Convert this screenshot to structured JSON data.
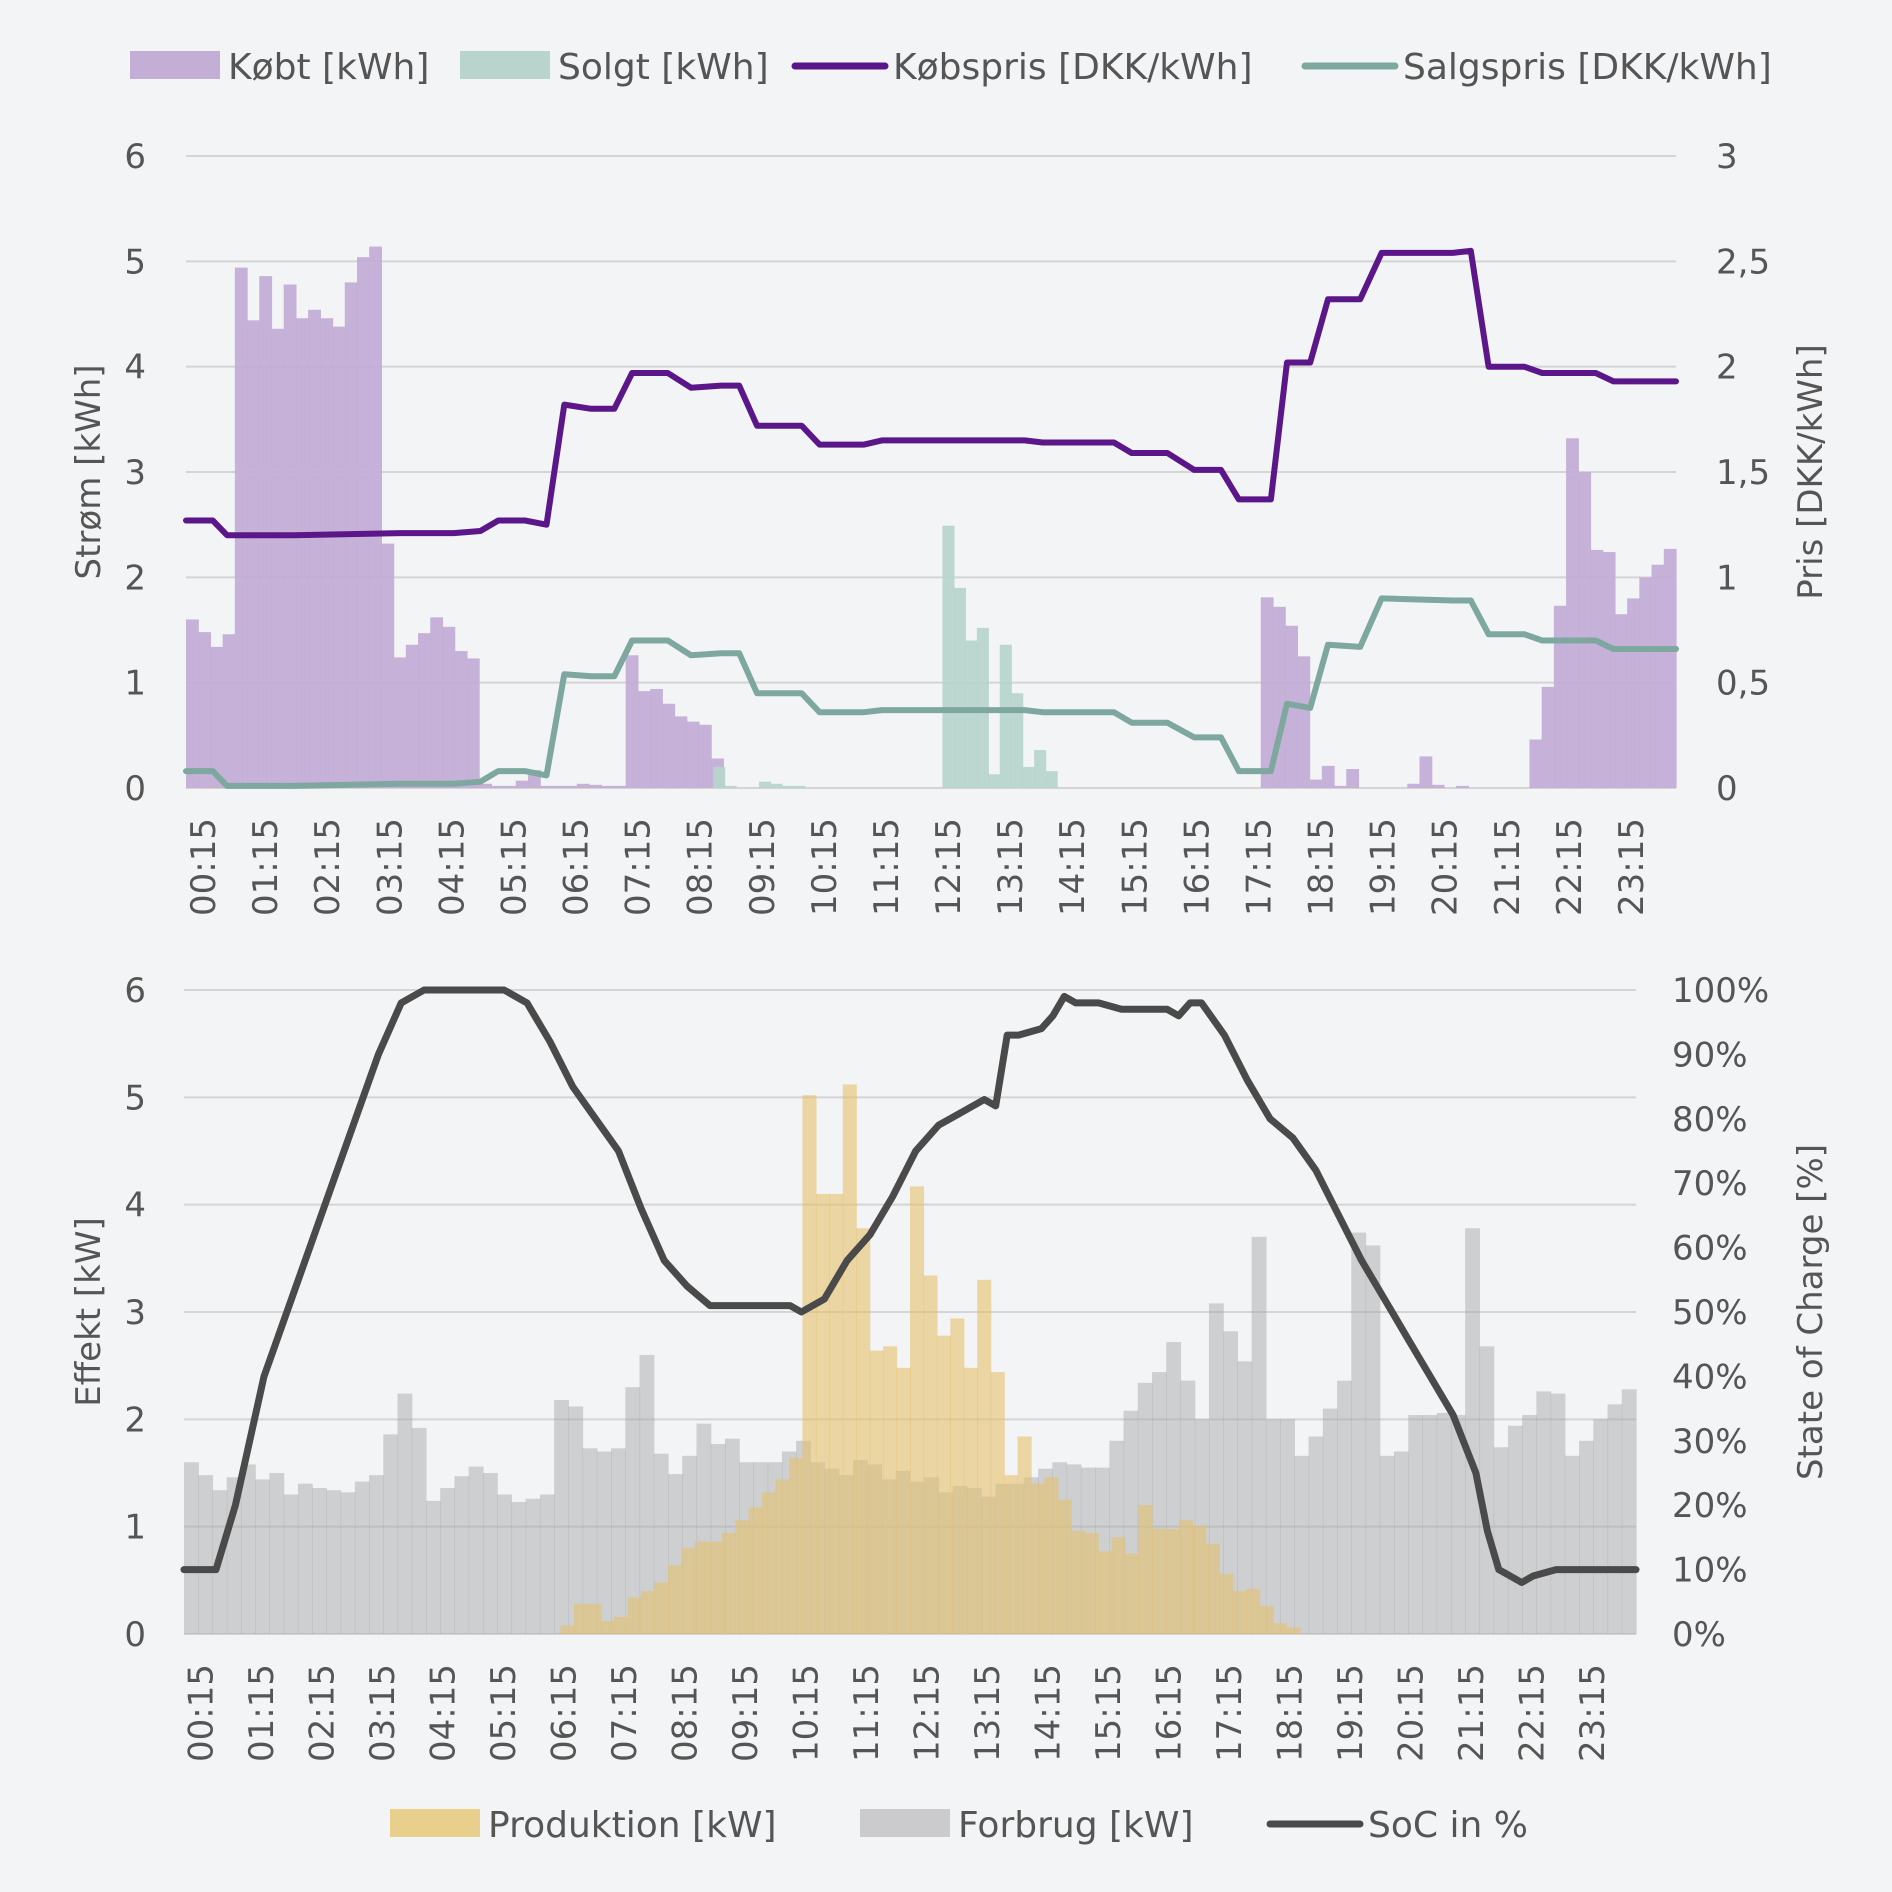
{
  "chart_data": [
    {
      "type": "bar+line",
      "title": "",
      "legend": [
        {
          "label": "Købt [kWh]",
          "kind": "bar",
          "color": "#c3aed6"
        },
        {
          "label": "Solgt [kWh]",
          "kind": "bar",
          "color": "#b8d4cd"
        },
        {
          "label": "Købspris [DKK/kWh]",
          "kind": "line",
          "color": "#5b1789"
        },
        {
          "label": "Salgspris [DKK/kWh]",
          "kind": "line",
          "color": "#7ea89f"
        }
      ],
      "ylabel": "Strøm [kWh]",
      "ylabel2": "Pris [DKK/kWh]",
      "ylim": [
        0,
        6
      ],
      "ylim2": [
        0,
        3
      ],
      "yticks": [
        "0",
        "1",
        "2",
        "3",
        "4",
        "5",
        "6"
      ],
      "yticks2": [
        "0",
        "0,5",
        "1",
        "1,5",
        "2",
        "2,5",
        "3"
      ],
      "xtick_labels": [
        "00:15",
        "01:15",
        "02:15",
        "03:15",
        "04:15",
        "05:15",
        "06:15",
        "07:15",
        "08:15",
        "09:15",
        "10:15",
        "11:15",
        "12:15",
        "13:15",
        "14:15",
        "15:15",
        "16:15",
        "17:15",
        "18:15",
        "19:15",
        "20:15",
        "21:15",
        "22:15",
        "23:15"
      ],
      "bought_kwh": [
        1.6,
        1.48,
        1.34,
        1.46,
        4.94,
        4.44,
        4.86,
        4.36,
        4.78,
        4.46,
        4.54,
        4.46,
        4.38,
        4.8,
        5.04,
        5.14,
        2.32,
        1.24,
        1.36,
        1.47,
        1.62,
        1.53,
        1.3,
        1.23,
        0.04,
        0.02,
        0.02,
        0.07,
        0.17,
        0.02,
        0.02,
        0.02,
        0.04,
        0.03,
        0.02,
        0.02,
        1.26,
        0.92,
        0.94,
        0.8,
        0.68,
        0.63,
        0.6,
        0.28,
        0,
        0,
        0,
        0,
        0,
        0,
        0,
        0,
        0,
        0,
        0,
        0,
        0,
        0,
        0,
        0,
        0,
        0,
        0,
        0,
        0,
        0,
        0,
        0,
        0,
        0,
        0,
        0,
        0,
        0,
        0,
        0,
        0,
        0,
        0,
        0,
        0,
        0,
        0,
        0,
        0,
        0,
        0,
        0,
        1.81,
        1.72,
        1.54,
        1.25,
        0.08,
        0.21,
        0.02,
        0.18,
        0,
        0,
        0,
        0,
        0.04,
        0.3,
        0.03,
        0,
        0.02,
        0,
        0,
        0,
        0,
        0,
        0.46,
        0.96,
        1.73,
        3.32,
        3.0,
        2.26,
        2.24,
        1.65,
        1.8,
        2.0,
        2.12,
        2.27
      ],
      "sold_kwh": [
        0,
        0,
        0,
        0,
        0,
        0,
        0,
        0,
        0,
        0,
        0,
        0,
        0,
        0,
        0,
        0,
        0,
        0,
        0,
        0,
        0,
        0,
        0,
        0,
        0,
        0,
        0,
        0,
        0,
        0,
        0,
        0,
        0,
        0,
        0,
        0,
        0,
        0,
        0,
        0,
        0,
        0,
        0,
        0,
        0,
        0,
        0.2,
        0.02,
        0,
        0,
        0.06,
        0.04,
        0.02,
        0.02,
        0,
        0,
        0,
        0,
        0,
        0,
        0,
        0,
        0,
        0,
        0,
        0,
        2.49,
        1.9,
        1.4,
        1.52,
        0.13,
        1.36,
        0.9,
        0.2,
        0.36,
        0.16,
        0,
        0,
        0,
        0,
        0,
        0,
        0,
        0,
        0,
        0,
        0,
        0,
        0,
        0,
        0,
        0,
        0,
        0,
        0,
        0,
        0,
        0,
        0,
        0,
        0,
        0,
        0,
        0,
        0,
        0,
        0,
        0,
        0,
        0,
        0,
        0,
        0,
        0,
        0,
        0,
        0,
        0,
        0,
        0,
        0,
        0,
        0,
        0,
        0,
        0,
        0,
        0,
        0,
        0
      ],
      "buy_price_points": [
        [
          0,
          1.27
        ],
        [
          1.5,
          1.27
        ],
        [
          2.3,
          1.2
        ],
        [
          6,
          1.2
        ],
        [
          12,
          1.21
        ],
        [
          15,
          1.21
        ],
        [
          16.5,
          1.22
        ],
        [
          17.5,
          1.27
        ],
        [
          19,
          1.27
        ],
        [
          20.2,
          1.25
        ],
        [
          21.2,
          1.82
        ],
        [
          22.7,
          1.8
        ],
        [
          24,
          1.8
        ],
        [
          25,
          1.97
        ],
        [
          27,
          1.97
        ],
        [
          28.3,
          1.9
        ],
        [
          30,
          1.91
        ],
        [
          31,
          1.91
        ],
        [
          32,
          1.72
        ],
        [
          34.5,
          1.72
        ],
        [
          35.5,
          1.63
        ],
        [
          38,
          1.63
        ],
        [
          39,
          1.65
        ],
        [
          47,
          1.65
        ],
        [
          48,
          1.64
        ],
        [
          52,
          1.64
        ],
        [
          53,
          1.59
        ],
        [
          55,
          1.59
        ],
        [
          56.5,
          1.51
        ],
        [
          58,
          1.51
        ],
        [
          59,
          1.37
        ],
        [
          60.8,
          1.37
        ],
        [
          61.7,
          2.02
        ],
        [
          63,
          2.02
        ],
        [
          64,
          2.32
        ],
        [
          65.8,
          2.32
        ],
        [
          67,
          2.54
        ],
        [
          71,
          2.54
        ],
        [
          72,
          2.55
        ],
        [
          73,
          2.0
        ],
        [
          75,
          2.0
        ],
        [
          76,
          1.97
        ],
        [
          79,
          1.97
        ],
        [
          80,
          1.93
        ],
        [
          83.5,
          1.93
        ]
      ],
      "sell_price_points": [
        [
          0,
          0.08
        ],
        [
          1.5,
          0.08
        ],
        [
          2.3,
          0.01
        ],
        [
          6,
          0.01
        ],
        [
          12,
          0.02
        ],
        [
          15,
          0.02
        ],
        [
          16.5,
          0.03
        ],
        [
          17.5,
          0.08
        ],
        [
          19,
          0.08
        ],
        [
          20.2,
          0.06
        ],
        [
          21.2,
          0.54
        ],
        [
          22.7,
          0.53
        ],
        [
          24,
          0.53
        ],
        [
          25,
          0.7
        ],
        [
          27,
          0.7
        ],
        [
          28.3,
          0.63
        ],
        [
          30,
          0.64
        ],
        [
          31,
          0.64
        ],
        [
          32,
          0.45
        ],
        [
          34.5,
          0.45
        ],
        [
          35.5,
          0.36
        ],
        [
          38,
          0.36
        ],
        [
          39,
          0.37
        ],
        [
          47,
          0.37
        ],
        [
          48,
          0.36
        ],
        [
          52,
          0.36
        ],
        [
          53,
          0.31
        ],
        [
          55,
          0.31
        ],
        [
          56.5,
          0.24
        ],
        [
          58,
          0.24
        ],
        [
          59,
          0.08
        ],
        [
          60.8,
          0.08
        ],
        [
          61.7,
          0.4
        ],
        [
          63,
          0.38
        ],
        [
          64,
          0.68
        ],
        [
          65.8,
          0.67
        ],
        [
          67,
          0.9
        ],
        [
          71,
          0.89
        ],
        [
          72,
          0.89
        ],
        [
          73,
          0.73
        ],
        [
          75,
          0.73
        ],
        [
          76,
          0.7
        ],
        [
          79,
          0.7
        ],
        [
          80,
          0.66
        ],
        [
          83.5,
          0.66
        ]
      ]
    },
    {
      "type": "area+line",
      "title": "",
      "legend": [
        {
          "label": "Produktion [kW]",
          "kind": "bar",
          "color": "#e9cf8c"
        },
        {
          "label": "Forbrug [kW]",
          "kind": "bar",
          "color": "#a9a9ab"
        },
        {
          "label": "SoC in %",
          "kind": "line",
          "color": "#4a4a4a"
        }
      ],
      "ylabel": "Effekt [kW]",
      "ylabel2": "State of Charge [%]",
      "ylim": [
        0,
        6
      ],
      "ylim2": [
        0,
        100
      ],
      "yticks": [
        "0",
        "1",
        "2",
        "3",
        "4",
        "5",
        "6"
      ],
      "yticks2": [
        "0%",
        "10%",
        "20%",
        "30%",
        "40%",
        "50%",
        "60%",
        "70%",
        "80%",
        "90%",
        "100%"
      ],
      "xtick_labels": [
        "00:15",
        "01:15",
        "02:15",
        "03:15",
        "04:15",
        "05:15",
        "06:15",
        "07:15",
        "08:15",
        "09:15",
        "10:15",
        "11:15",
        "12:15",
        "13:15",
        "14:15",
        "15:15",
        "16:15",
        "17:15",
        "18:15",
        "19:15",
        "20:15",
        "21:15",
        "22:15",
        "23:15"
      ],
      "consumption_kw": [
        1.6,
        1.48,
        1.34,
        1.46,
        1.58,
        1.44,
        1.5,
        1.3,
        1.4,
        1.36,
        1.34,
        1.32,
        1.42,
        1.48,
        1.86,
        2.24,
        1.92,
        1.24,
        1.36,
        1.47,
        1.56,
        1.5,
        1.3,
        1.23,
        1.26,
        1.3,
        2.18,
        2.12,
        1.73,
        1.7,
        1.73,
        2.3,
        2.6,
        1.68,
        1.49,
        1.66,
        1.96,
        1.77,
        1.82,
        1.6,
        1.6,
        1.6,
        1.7,
        1.8,
        1.6,
        1.54,
        1.48,
        1.62,
        1.58,
        1.44,
        1.52,
        1.42,
        1.46,
        1.32,
        1.38,
        1.36,
        1.28,
        1.4,
        1.4,
        1.46,
        1.54,
        1.6,
        1.58,
        1.55,
        1.55,
        1.8,
        2.08,
        2.34,
        2.44,
        2.72,
        2.36,
        2.0,
        3.08,
        2.82,
        2.54,
        3.7,
        2.0,
        2.0,
        1.66,
        1.84,
        2.1,
        2.36,
        3.74,
        3.62,
        1.66,
        1.7,
        2.04,
        2.04,
        2.06,
        2.04,
        3.78,
        2.68,
        1.74,
        1.94,
        2.04,
        2.26,
        2.24,
        1.66,
        1.8,
        2.0,
        2.14,
        2.28
      ],
      "production_kw": [
        0,
        0,
        0,
        0,
        0,
        0,
        0,
        0,
        0,
        0,
        0,
        0,
        0,
        0,
        0,
        0,
        0,
        0,
        0,
        0,
        0,
        0,
        0,
        0,
        0,
        0,
        0,
        0,
        0.08,
        0.28,
        0.28,
        0.12,
        0.16,
        0.34,
        0.4,
        0.48,
        0.64,
        0.8,
        0.86,
        0.86,
        0.94,
        1.06,
        1.18,
        1.32,
        1.44,
        1.64,
        5.02,
        4.1,
        4.1,
        5.12,
        3.78,
        2.64,
        2.68,
        2.48,
        4.17,
        3.34,
        2.78,
        2.94,
        2.48,
        3.3,
        2.44,
        1.48,
        1.84,
        1.4,
        1.46,
        1.25,
        0.96,
        0.94,
        0.77,
        0.9,
        0.75,
        1.2,
        0.98,
        0.98,
        1.06,
        1.01,
        0.84,
        0.56,
        0.4,
        0.42,
        0.26,
        0.1,
        0.06,
        0,
        0,
        0,
        0,
        0,
        0,
        0,
        0,
        0,
        0,
        0,
        0,
        0,
        0,
        0,
        0,
        0,
        0,
        0,
        0,
        0,
        0,
        0,
        0,
        0
      ],
      "soc_points": [
        [
          0,
          10
        ],
        [
          2.8,
          10
        ],
        [
          4.5,
          20
        ],
        [
          7,
          40
        ],
        [
          10,
          55
        ],
        [
          13,
          70
        ],
        [
          15,
          80
        ],
        [
          17,
          90
        ],
        [
          19,
          98
        ],
        [
          21,
          100
        ],
        [
          28,
          100
        ],
        [
          30,
          98
        ],
        [
          32,
          92
        ],
        [
          34,
          85
        ],
        [
          36,
          80
        ],
        [
          38,
          75
        ],
        [
          40,
          66
        ],
        [
          42,
          58
        ],
        [
          44,
          54
        ],
        [
          46,
          51
        ],
        [
          48,
          51
        ],
        [
          53,
          51
        ],
        [
          54,
          50
        ],
        [
          56,
          52
        ],
        [
          58,
          58
        ],
        [
          60,
          62
        ],
        [
          62,
          68
        ],
        [
          64,
          75
        ],
        [
          66,
          79
        ],
        [
          68,
          81
        ],
        [
          70,
          83
        ],
        [
          71,
          82
        ],
        [
          72,
          93
        ],
        [
          73,
          93
        ],
        [
          75,
          94
        ],
        [
          76,
          96
        ],
        [
          77,
          99
        ],
        [
          78,
          98
        ],
        [
          80,
          98
        ],
        [
          82,
          97
        ],
        [
          84,
          97
        ],
        [
          86,
          97
        ],
        [
          87,
          96
        ],
        [
          88,
          98
        ],
        [
          89,
          98
        ],
        [
          91,
          93
        ],
        [
          93,
          86
        ],
        [
          95,
          80
        ],
        [
          97,
          77
        ],
        [
          99,
          72
        ],
        [
          101,
          65
        ],
        [
          103,
          58
        ],
        [
          105,
          52
        ],
        [
          107,
          46
        ],
        [
          109,
          40
        ],
        [
          111,
          34
        ],
        [
          113,
          25
        ],
        [
          114,
          16
        ],
        [
          115,
          10
        ],
        [
          116,
          9
        ],
        [
          117,
          8
        ],
        [
          118,
          9
        ],
        [
          120,
          10
        ],
        [
          127,
          10
        ]
      ]
    }
  ]
}
